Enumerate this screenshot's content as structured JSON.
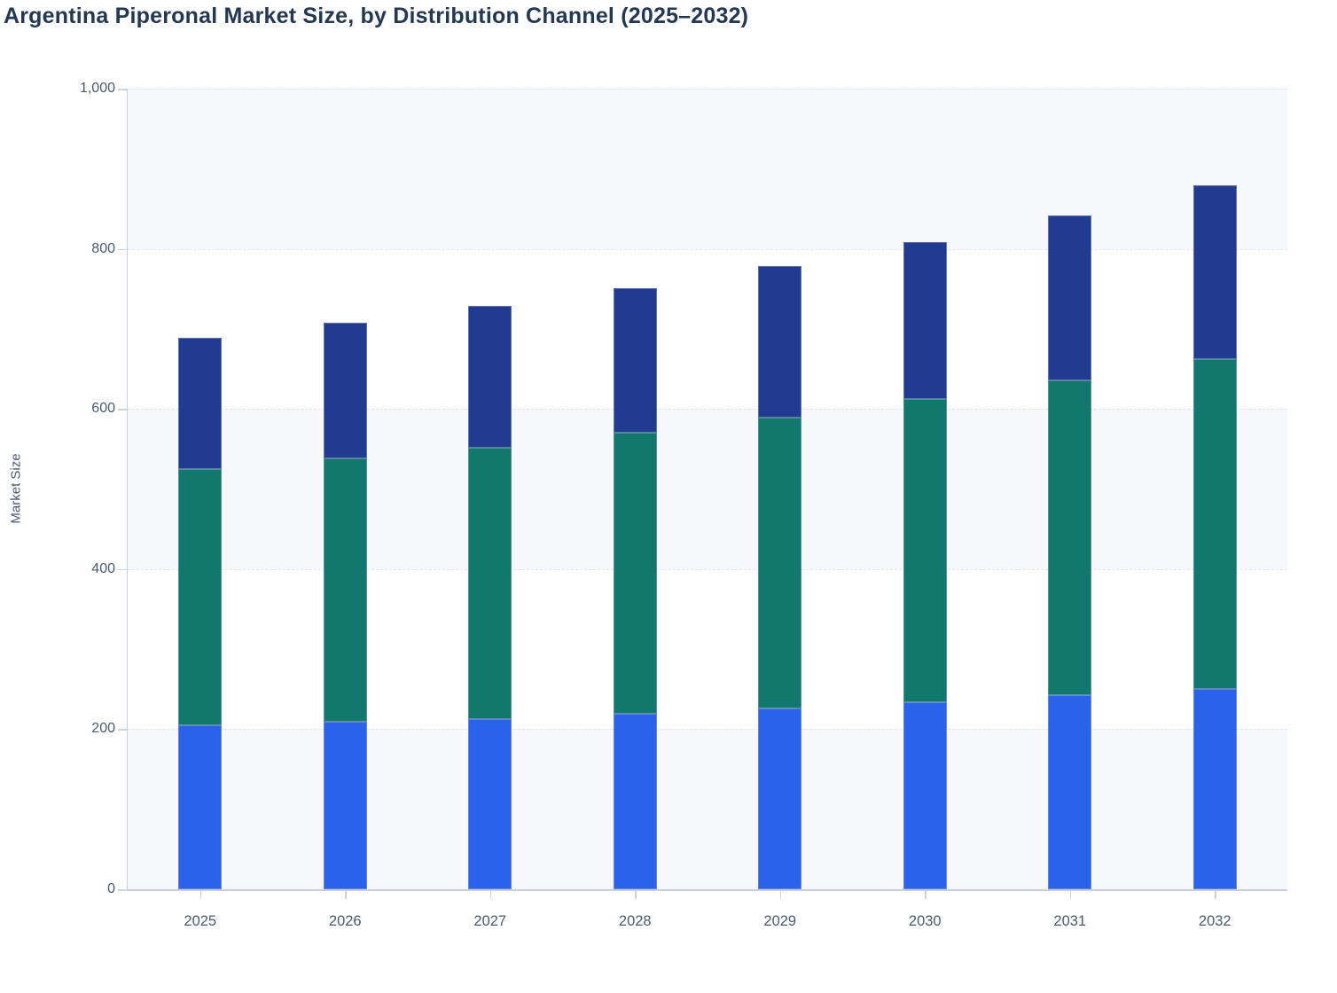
{
  "title": "Argentina Piperonal Market Size, by Distribution Channel (2025–2032)",
  "chart_data": {
    "type": "bar",
    "stacked": true,
    "title": "Argentina Piperonal Market Size, by Distribution Channel (2025–2032)",
    "xlabel": "",
    "ylabel": "Market Size",
    "categories": [
      "2025",
      "2026",
      "2027",
      "2028",
      "2029",
      "2030",
      "2031",
      "2032"
    ],
    "series": [
      {
        "name": "bottom-segment-blue",
        "color": "#2A62EB",
        "values": [
          205,
          209,
          213,
          219,
          226,
          234,
          242,
          250
        ]
      },
      {
        "name": "middle-segment-teal",
        "color": "#10786C",
        "values": [
          320,
          329,
          339,
          351,
          363,
          378,
          394,
          412
        ]
      },
      {
        "name": "top-segment-navy",
        "color": "#203B8F",
        "values": [
          164,
          170,
          177,
          181,
          189,
          196,
          206,
          217
        ]
      }
    ],
    "stack_totals": [
      689,
      708,
      729,
      751,
      778,
      808,
      842,
      879
    ],
    "ylim": [
      0,
      1000
    ],
    "y_ticks": [
      0,
      200,
      400,
      600,
      800,
      1000
    ],
    "y_tick_labels": [
      "0",
      "200",
      "400",
      "600",
      "800",
      "1,000"
    ],
    "grid": "horizontal-dashed",
    "legend": "none",
    "banded_background": true
  },
  "colors": {
    "title_text": "#233852",
    "axis_text": "#4a5a72",
    "axis_line": "#c7d0e2",
    "grid_line": "#e2e5e9",
    "band_fill": "#f7f8fb",
    "tick_mark": "#cdd4e0"
  }
}
